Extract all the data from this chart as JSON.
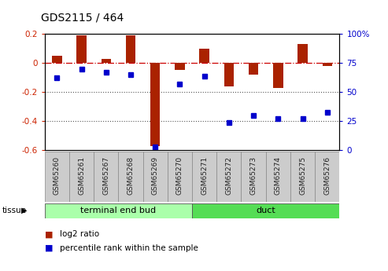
{
  "title": "GDS2115 / 464",
  "samples": [
    "GSM65260",
    "GSM65261",
    "GSM65267",
    "GSM65268",
    "GSM65269",
    "GSM65270",
    "GSM65271",
    "GSM65272",
    "GSM65273",
    "GSM65274",
    "GSM65275",
    "GSM65276"
  ],
  "log2_ratio": [
    0.05,
    0.19,
    0.03,
    0.19,
    -0.57,
    -0.05,
    0.1,
    -0.16,
    -0.08,
    -0.17,
    0.13,
    -0.02
  ],
  "percentile_rank": [
    62,
    70,
    67,
    65,
    3,
    57,
    64,
    24,
    30,
    27,
    27,
    33
  ],
  "groups": [
    {
      "label": "terminal end bud",
      "start": 0,
      "end": 6,
      "color": "#aaffaa"
    },
    {
      "label": "duct",
      "start": 6,
      "end": 12,
      "color": "#55dd55"
    }
  ],
  "ylim_left": [
    -0.6,
    0.2
  ],
  "ylim_right": [
    0,
    100
  ],
  "yticks_left": [
    0.2,
    0.0,
    -0.2,
    -0.4,
    -0.6
  ],
  "yticks_right": [
    100,
    75,
    50,
    25,
    0
  ],
  "bar_color": "#aa2200",
  "dot_color": "#0000cc",
  "hline_color": "#cc0000",
  "dotted_line_color": "#555555",
  "legend_bar_label": "log2 ratio",
  "legend_dot_label": "percentile rank within the sample",
  "background_color": "#ffffff"
}
